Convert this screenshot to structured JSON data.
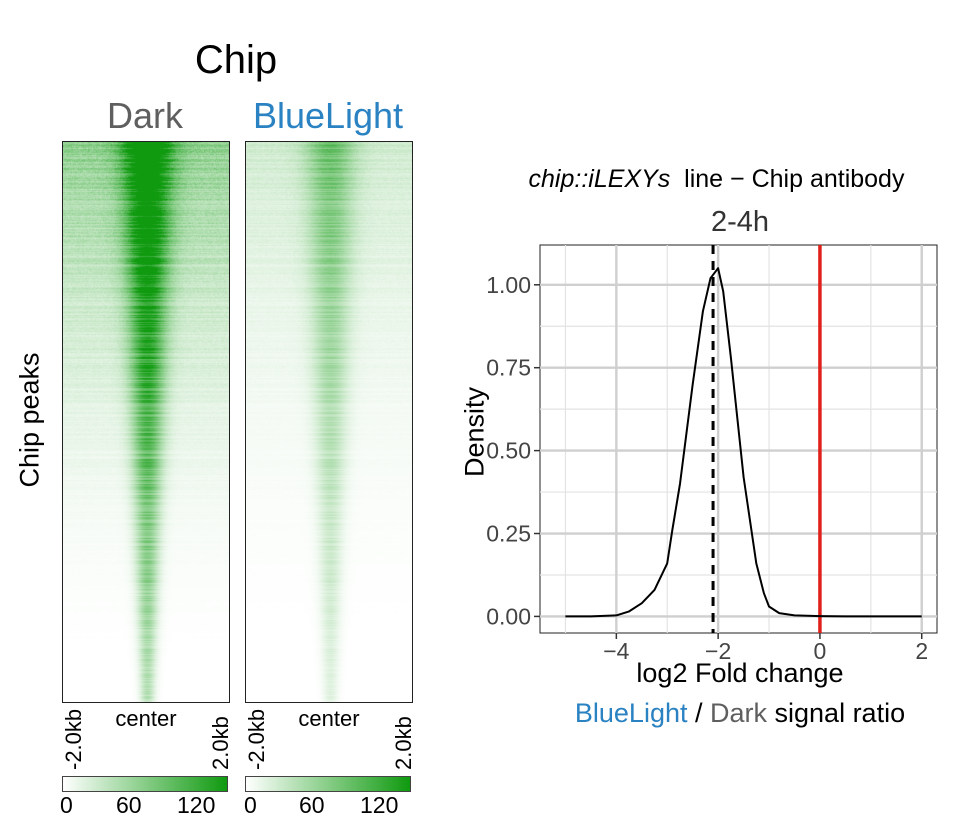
{
  "figure": {
    "main_title": "Chip",
    "colors": {
      "heat_max": "#0f9a0f",
      "heat_min": "#ffffff",
      "dark_gray": "#5f5f5f",
      "blue": "#2a82c2",
      "red_line": "#e0201b"
    }
  },
  "heatmap": {
    "ylabel": "Chip peaks",
    "panels": [
      {
        "title": "Dark",
        "title_color": "#5f5f5f",
        "intensity": 1.0
      },
      {
        "title": "BlueLight",
        "title_color": "#2a82c2",
        "intensity": 0.42
      }
    ],
    "x_ticks": {
      "left": "-2.0kb",
      "center": "center",
      "right": "2.0kb"
    },
    "colorbar": {
      "ticks": [
        "0",
        "60",
        "120"
      ],
      "min": 0,
      "max": 140
    }
  },
  "chart_data": {
    "type": "line",
    "title_italic": "chip::iLEXYs",
    "title_rest": "line − Chip antibody",
    "subtitle": "2-4h",
    "xlabel": "log2 Fold change",
    "ylabel": "Density",
    "caption": {
      "blue": "BlueLight",
      "sep": " / ",
      "gray": "Dark",
      "rest": " signal ratio"
    },
    "xlim": [
      -5.5,
      2.3
    ],
    "ylim": [
      -0.05,
      1.12
    ],
    "x_ticks": [
      -4,
      -2,
      0,
      2
    ],
    "y_ticks": [
      0.0,
      0.25,
      0.5,
      0.75,
      1.0
    ],
    "y_tick_labels": [
      "0.00",
      "0.25",
      "0.50",
      "0.75",
      "1.00"
    ],
    "grid": true,
    "series": [
      {
        "x": [
          -5.0,
          -4.5,
          -4.0,
          -3.75,
          -3.5,
          -3.25,
          -3.0,
          -2.9,
          -2.75,
          -2.5,
          -2.3,
          -2.15,
          -2.0,
          -1.9,
          -1.75,
          -1.5,
          -1.25,
          -1.1,
          -1.0,
          -0.8,
          -0.5,
          0.0,
          0.5,
          1.0,
          1.5,
          2.0
        ],
        "y": [
          0.0,
          0.0,
          0.003,
          0.015,
          0.04,
          0.08,
          0.16,
          0.26,
          0.4,
          0.7,
          0.92,
          1.02,
          1.05,
          0.98,
          0.78,
          0.42,
          0.16,
          0.07,
          0.03,
          0.01,
          0.003,
          0.001,
          0.0,
          0.0,
          0.0,
          0.0
        ]
      }
    ],
    "vlines": [
      {
        "x": -2.1,
        "style": "dashed",
        "color": "#000000"
      },
      {
        "x": 0.0,
        "style": "solid",
        "color": "#e0201b"
      }
    ]
  }
}
